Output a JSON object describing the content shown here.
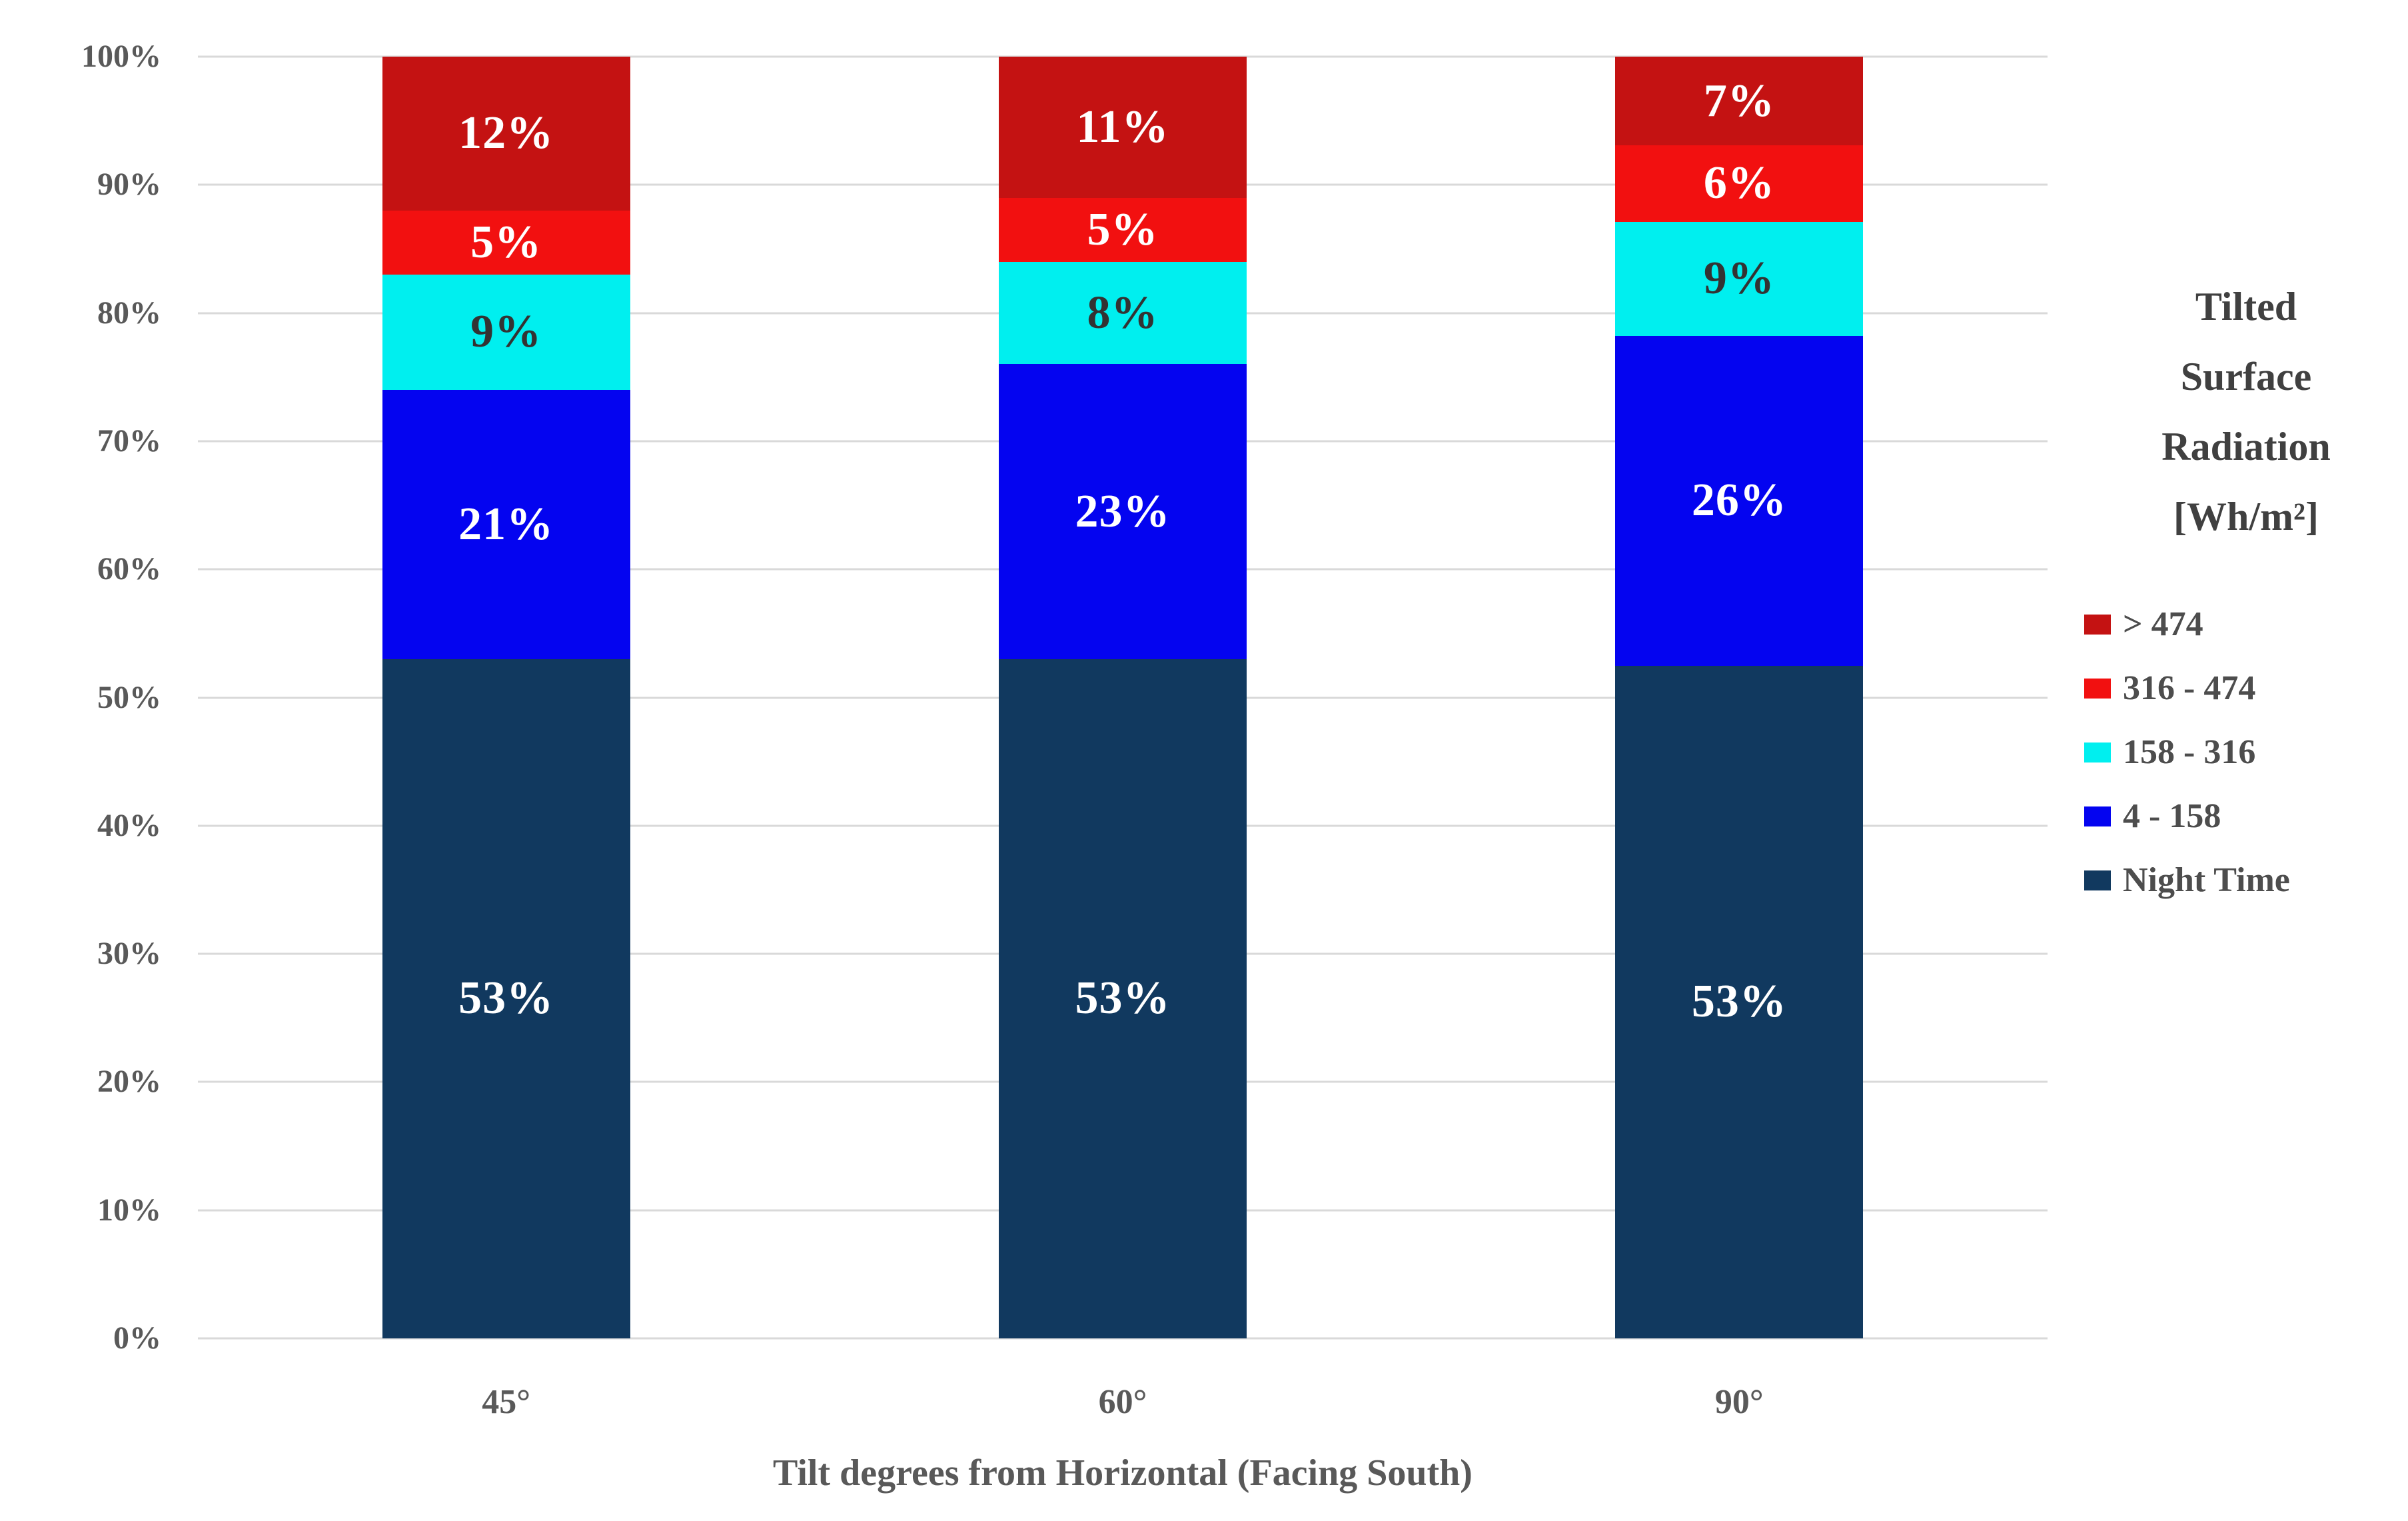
{
  "chart_data": {
    "type": "bar",
    "subtype": "stacked-100-percent",
    "title": "",
    "xlabel": "Tilt degrees from Horizontal (Facing South)",
    "ylabel": "",
    "ylim": [
      0,
      100
    ],
    "grid": true,
    "categories": [
      "45°",
      "60°",
      "90°"
    ],
    "yticks": [
      "0%",
      "10%",
      "20%",
      "30%",
      "40%",
      "50%",
      "60%",
      "70%",
      "80%",
      "90%",
      "100%"
    ],
    "series": [
      {
        "name": "Night Time",
        "color": "#11395F",
        "label_color": "#FFFFFF",
        "values": [
          53,
          53,
          53
        ],
        "labels": [
          "53%",
          "53%",
          "53%"
        ]
      },
      {
        "name": "4 - 158",
        "color": "#0404F0",
        "label_color": "#FFFFFF",
        "values": [
          21,
          23,
          26
        ],
        "labels": [
          "21%",
          "23%",
          "26%"
        ]
      },
      {
        "name": "158 - 316",
        "color": "#00EFEF",
        "label_color": "#333333",
        "values": [
          9,
          8,
          9
        ],
        "labels": [
          "9%",
          "8%",
          "9%"
        ]
      },
      {
        "name": "316 - 474",
        "color": "#F21010",
        "label_color": "#FFFFFF",
        "values": [
          5,
          5,
          6
        ],
        "labels": [
          "5%",
          "5%",
          "6%"
        ]
      },
      {
        "name": "> 474",
        "color": "#C41212",
        "label_color": "#FFFFFF",
        "values": [
          12,
          11,
          7
        ],
        "labels": [
          "12%",
          "11%",
          "7%"
        ]
      }
    ],
    "legend": {
      "position": "right",
      "title_lines": [
        "Tilted",
        "Surface",
        "Radiation",
        "[Wh/m²]"
      ]
    },
    "colors": {
      "gridline": "#D9D9D9",
      "axis_text": "#595959",
      "legend_text": "#4D4D4D",
      "legend_title_text": "#404040",
      "background": "#FFFFFF"
    }
  }
}
